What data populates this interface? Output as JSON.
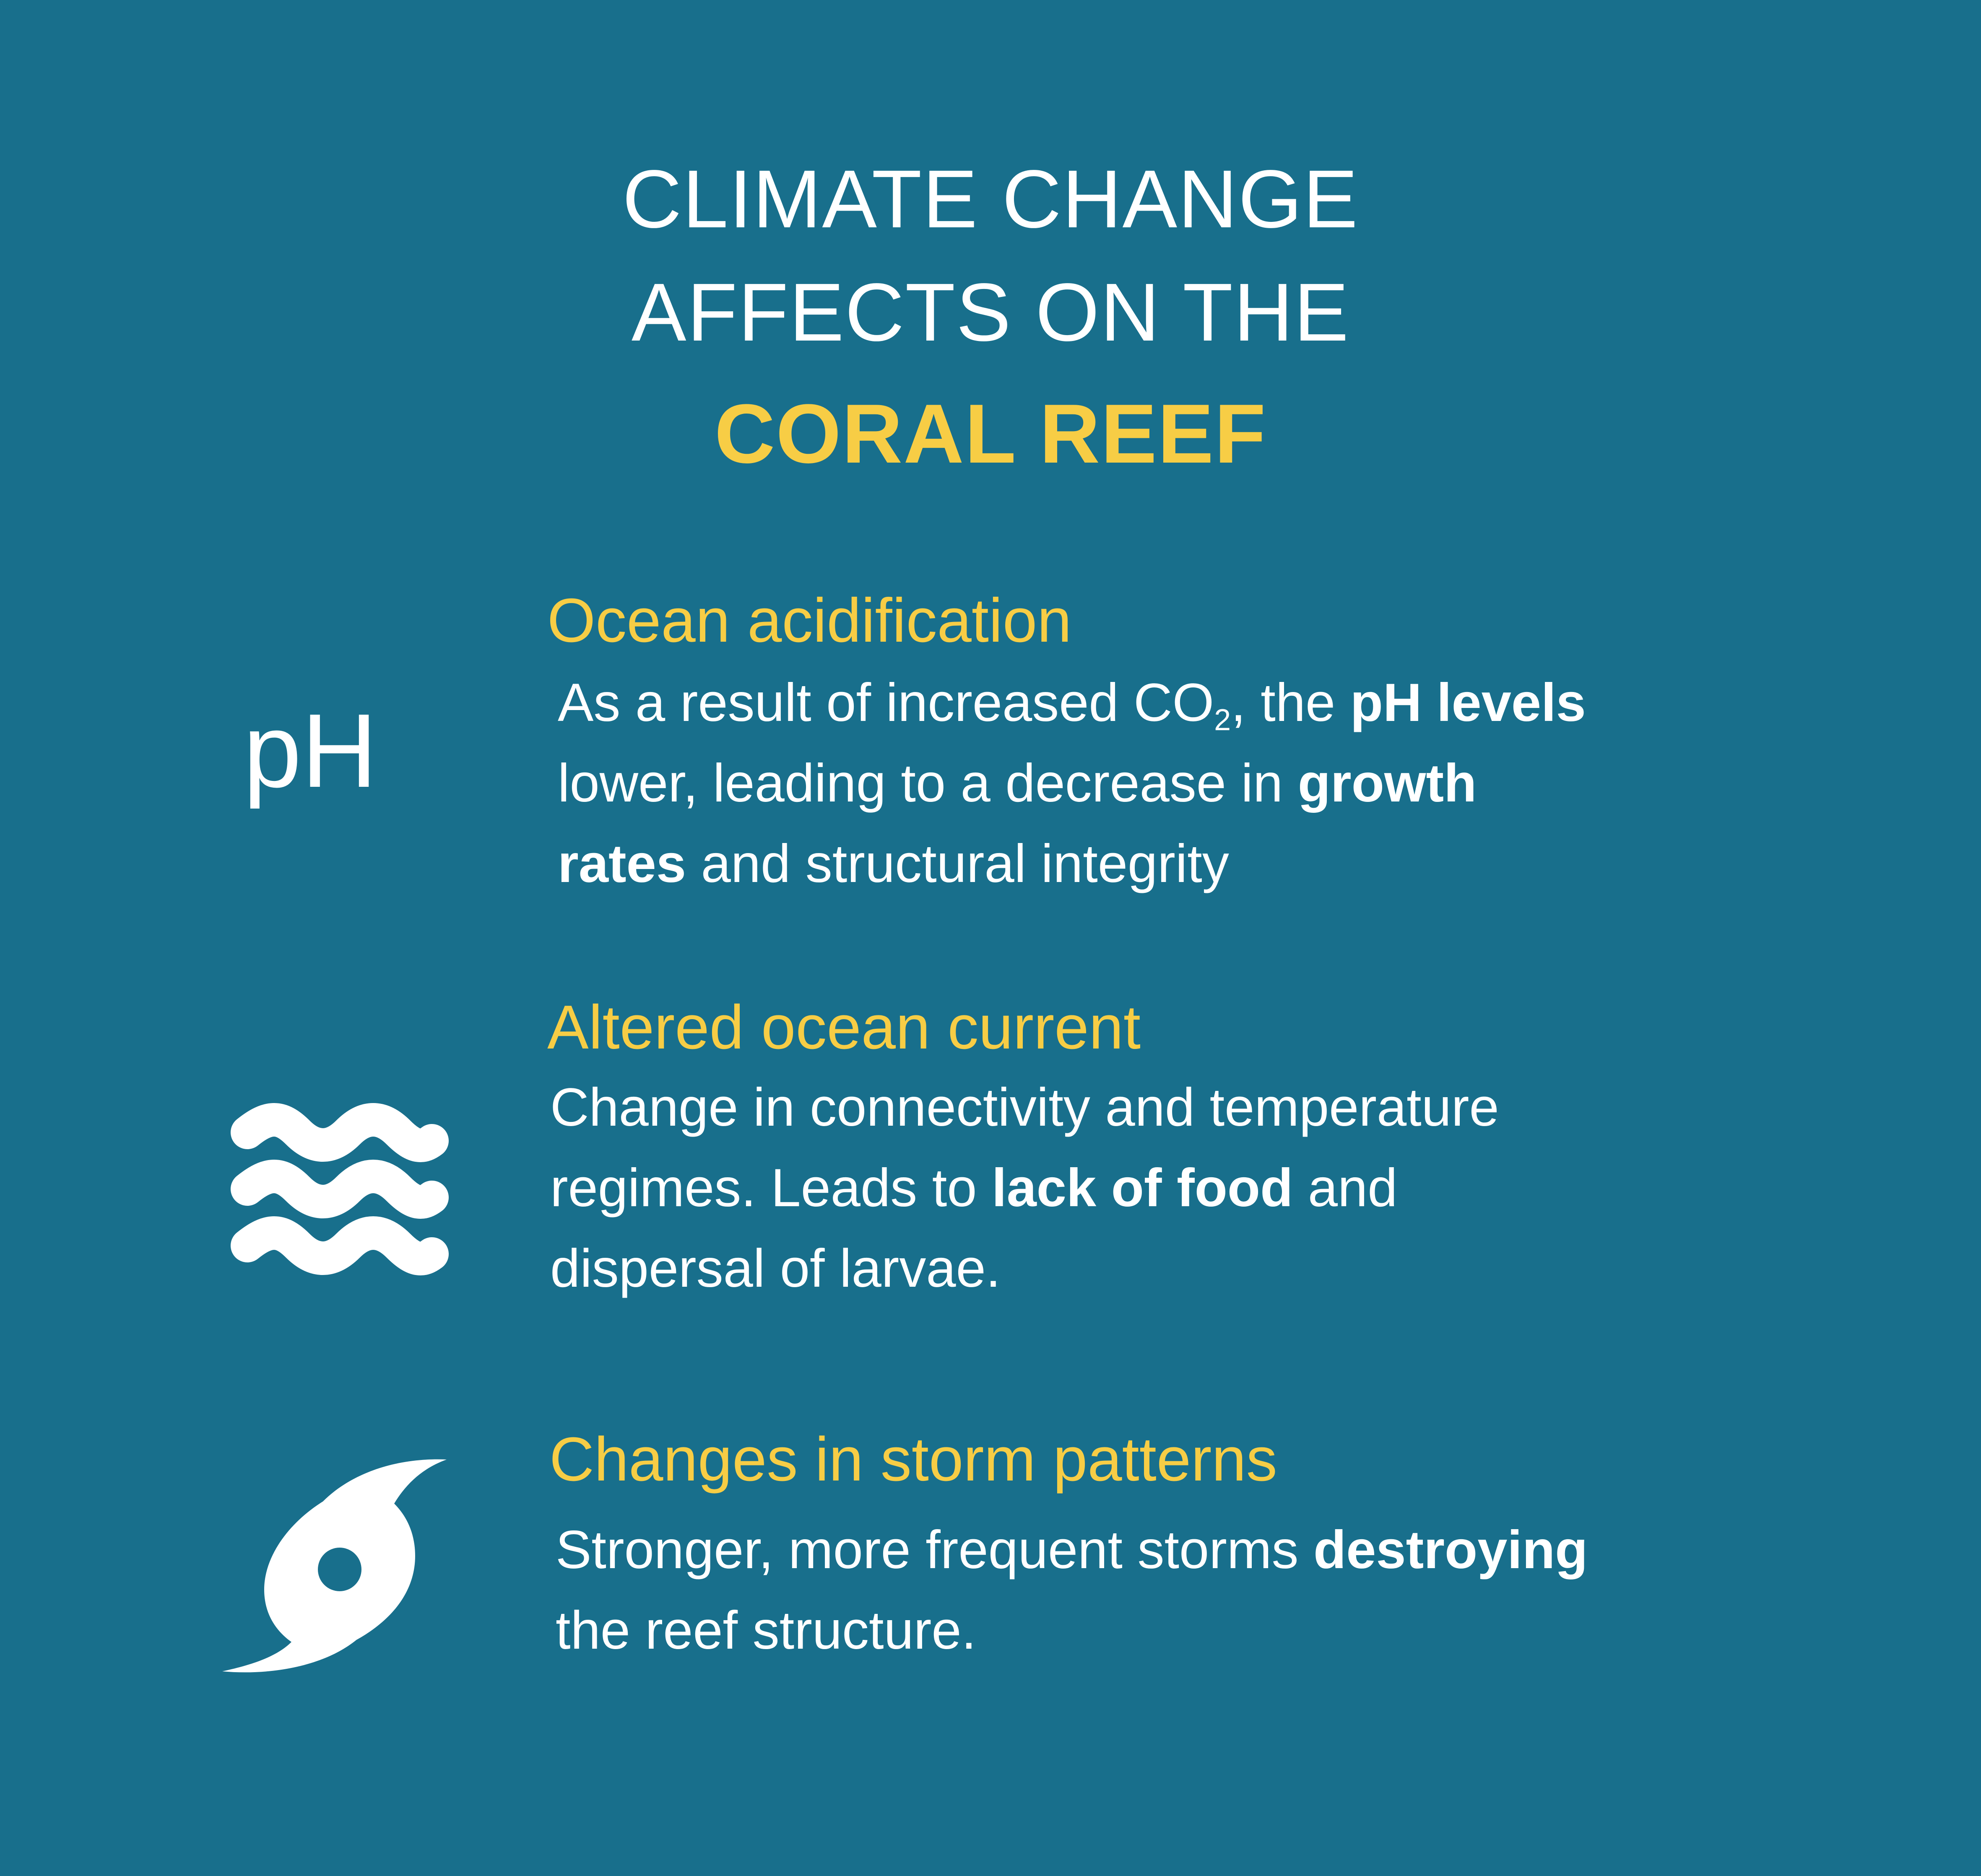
{
  "background_color": "#186f8c",
  "accent_color": "#f7cd45",
  "title": {
    "line1": "CLIMATE CHANGE",
    "line2": "AFFECTS ON THE",
    "line3": "CORAL REEF"
  },
  "sections": [
    {
      "icon": "ph-icon",
      "icon_text": "pH",
      "heading": "Ocean acidification",
      "lines": [
        [
          "As a result of increased CO",
          "2",
          ", the ",
          "pH levels"
        ],
        [
          "lower, leading to a decrease in ",
          "growth"
        ],
        [
          "rates",
          " and structural integrity"
        ]
      ]
    },
    {
      "icon": "waves-icon",
      "heading": "Altered ocean current",
      "lines": [
        [
          "Change in connectivity and temperature"
        ],
        [
          "regimes. Leads to ",
          "lack of food",
          " and"
        ],
        [
          "dispersal of larvae."
        ]
      ]
    },
    {
      "icon": "hurricane-icon",
      "heading": "Changes in storm patterns",
      "lines": [
        [
          "Stronger, more frequent storms ",
          "destroying"
        ],
        [
          "the reef structure."
        ]
      ]
    }
  ]
}
